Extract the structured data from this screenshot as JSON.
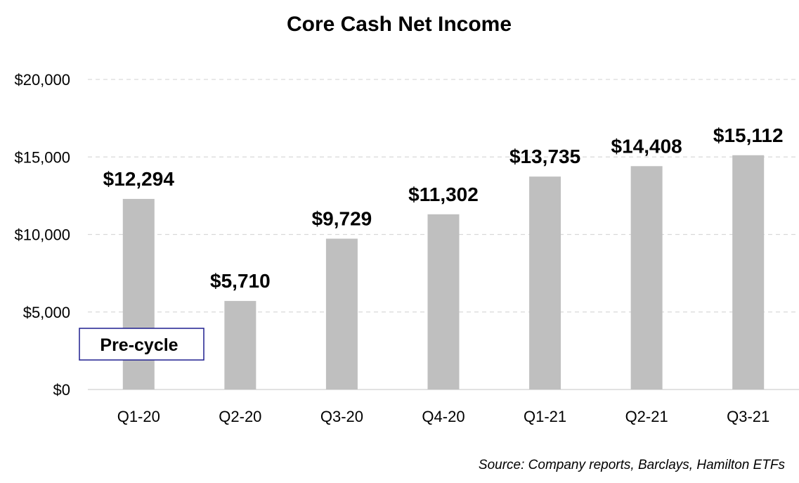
{
  "chart_data": {
    "type": "bar",
    "title": "Core Cash Net Income",
    "xlabel": "",
    "ylabel": "",
    "categories": [
      "Q1-20",
      "Q2-20",
      "Q3-20",
      "Q4-20",
      "Q1-21",
      "Q2-21",
      "Q3-21"
    ],
    "values": [
      12294,
      5710,
      9729,
      11302,
      13735,
      14408,
      15112
    ],
    "data_labels": [
      "$12,294",
      "$5,710",
      "$9,729",
      "$11,302",
      "$13,735",
      "$14,408",
      "$15,112"
    ],
    "ylim": [
      0,
      20000
    ],
    "yticks": [
      0,
      5000,
      10000,
      15000,
      20000
    ],
    "ytick_labels": [
      "$0",
      "$5,000",
      "$10,000",
      "$15,000",
      "$20,000"
    ],
    "grid": true,
    "legend": "none",
    "bar_color": "#bfbfbf",
    "annotations": [
      {
        "text": "Pre-cycle",
        "border_color": "#1f1f8f"
      }
    ],
    "source": "Source: Company reports, Barclays, Hamilton ETFs"
  }
}
